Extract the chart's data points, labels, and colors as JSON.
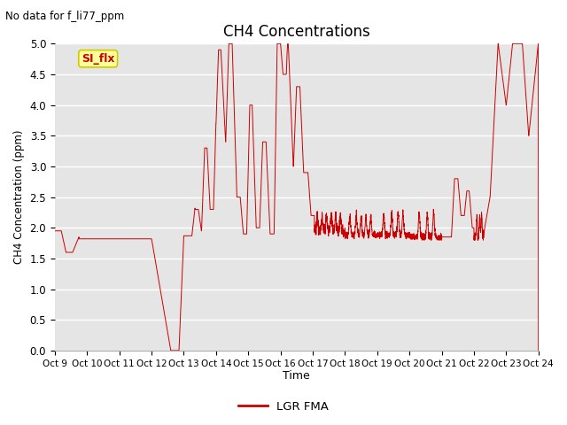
{
  "title": "CH4 Concentrations",
  "subtitle": "No data for f_li77_ppm",
  "ylabel": "CH4 Concentration (ppm)",
  "xlabel": "Time",
  "ylim": [
    0.0,
    5.0
  ],
  "yticks": [
    0.0,
    0.5,
    1.0,
    1.5,
    2.0,
    2.5,
    3.0,
    3.5,
    4.0,
    4.5,
    5.0
  ],
  "xtick_labels": [
    "Oct 9",
    "Oct 10",
    "Oct 11",
    "Oct 12",
    "Oct 13",
    "Oct 14",
    "Oct 15",
    "Oct 16",
    "Oct 17",
    "Oct 18",
    "Oct 19",
    "Oct 20",
    "Oct 21",
    "Oct 22",
    "Oct 23",
    "Oct 24"
  ],
  "line_color": "#cc0000",
  "line_label": "LGR FMA",
  "bg_color": "#e5e5e5",
  "legend_box_color": "#ffff99",
  "legend_box_text": "SI_flx",
  "legend_box_text_color": "#cc0000",
  "legend_box_edge_color": "#cccc00"
}
